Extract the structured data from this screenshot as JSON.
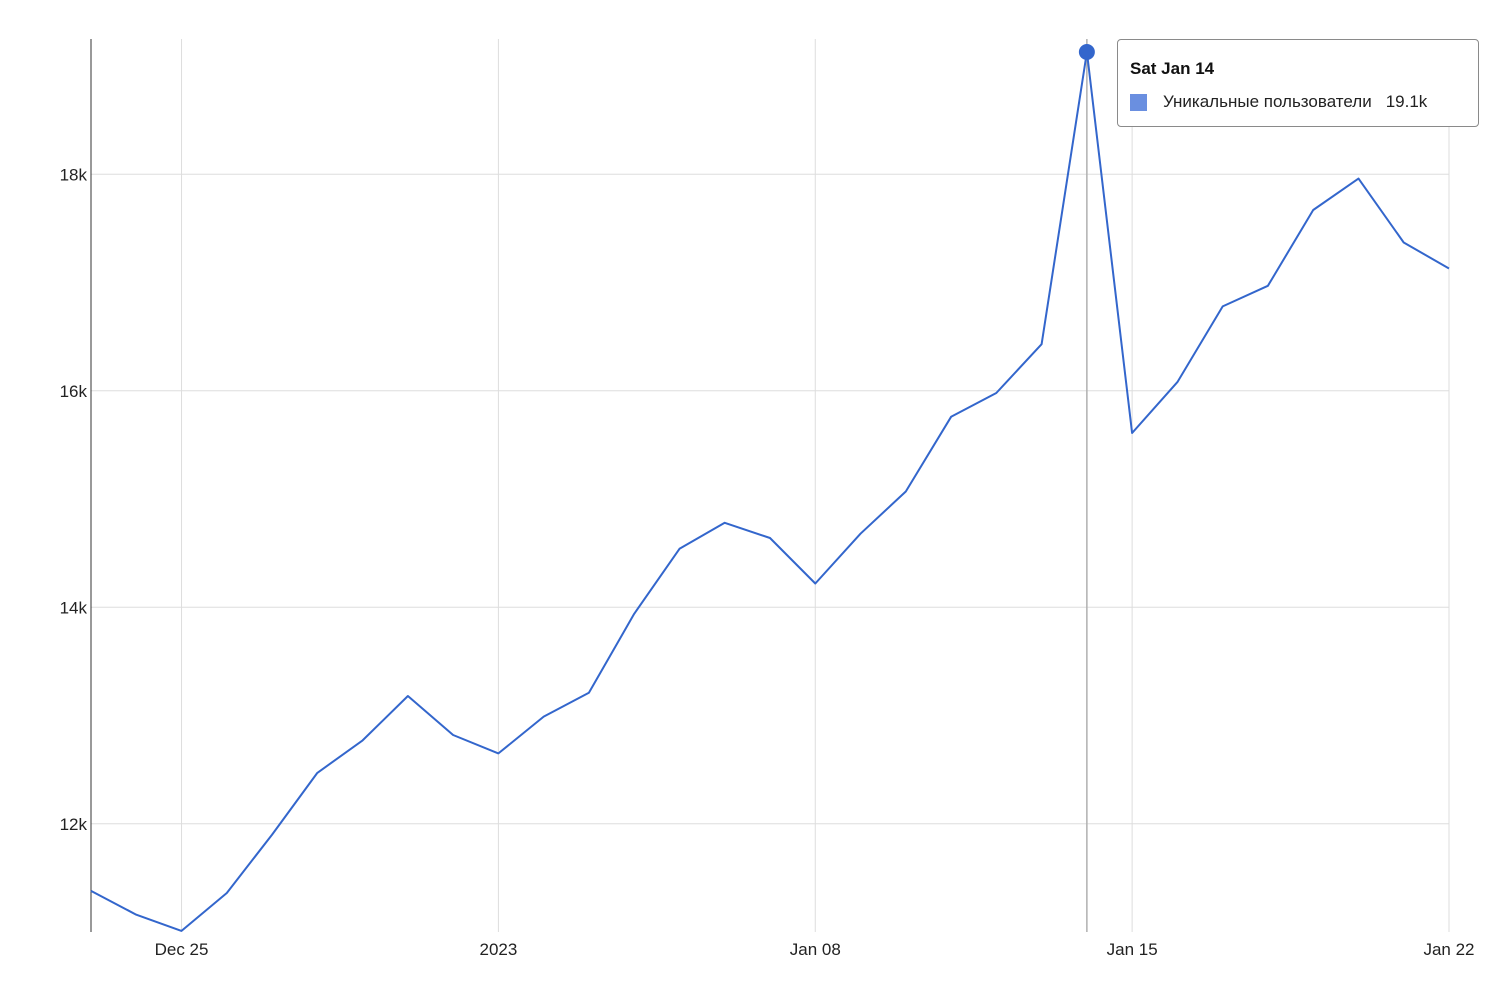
{
  "colors": {
    "series": "#3366cc",
    "grid": "#dddddd",
    "swatch": "#6a8fe0",
    "text": "#222222"
  },
  "tooltip": {
    "title": "Sat Jan 14",
    "series_name": "Уникальные пользователи",
    "value": "19.1k"
  },
  "chart_data": {
    "type": "line",
    "title": "",
    "xlabel": "",
    "ylabel": "",
    "grid": true,
    "legend": "none",
    "x_start": "2022-12-23",
    "x": [
      "2022-12-23",
      "2022-12-24",
      "2022-12-25",
      "2022-12-26",
      "2022-12-27",
      "2022-12-28",
      "2022-12-29",
      "2022-12-30",
      "2022-12-31",
      "2023-01-01",
      "2023-01-02",
      "2023-01-03",
      "2023-01-04",
      "2023-01-05",
      "2023-01-06",
      "2023-01-07",
      "2023-01-08",
      "2023-01-09",
      "2023-01-10",
      "2023-01-11",
      "2023-01-12",
      "2023-01-13",
      "2023-01-14",
      "2023-01-15",
      "2023-01-16",
      "2023-01-17",
      "2023-01-18",
      "2023-01-19",
      "2023-01-20",
      "2023-01-21",
      "2023-01-22"
    ],
    "series": [
      {
        "name": "Уникальные пользователи",
        "values": [
          11380,
          11160,
          11010,
          11360,
          11900,
          12470,
          12770,
          13180,
          12820,
          12650,
          12990,
          13210,
          13940,
          14540,
          14780,
          14640,
          14220,
          14680,
          15070,
          15760,
          15980,
          16430,
          19130,
          15610,
          16080,
          16780,
          16970,
          17670,
          17960,
          17370,
          17130
        ]
      }
    ],
    "ylim": [
      11000,
      19250
    ],
    "y_ticks": [
      12000,
      14000,
      16000,
      18000
    ],
    "y_tick_labels": [
      "12k",
      "14k",
      "16k",
      "18k"
    ],
    "x_ticks": [
      "2022-12-25",
      "2023-01-01",
      "2023-01-08",
      "2023-01-15",
      "2023-01-22"
    ],
    "x_tick_labels": [
      "Dec 25",
      "2023",
      "Jan 08",
      "Jan 15",
      "Jan 22"
    ],
    "highlight": {
      "x": "2023-01-14",
      "value": 19130
    }
  }
}
